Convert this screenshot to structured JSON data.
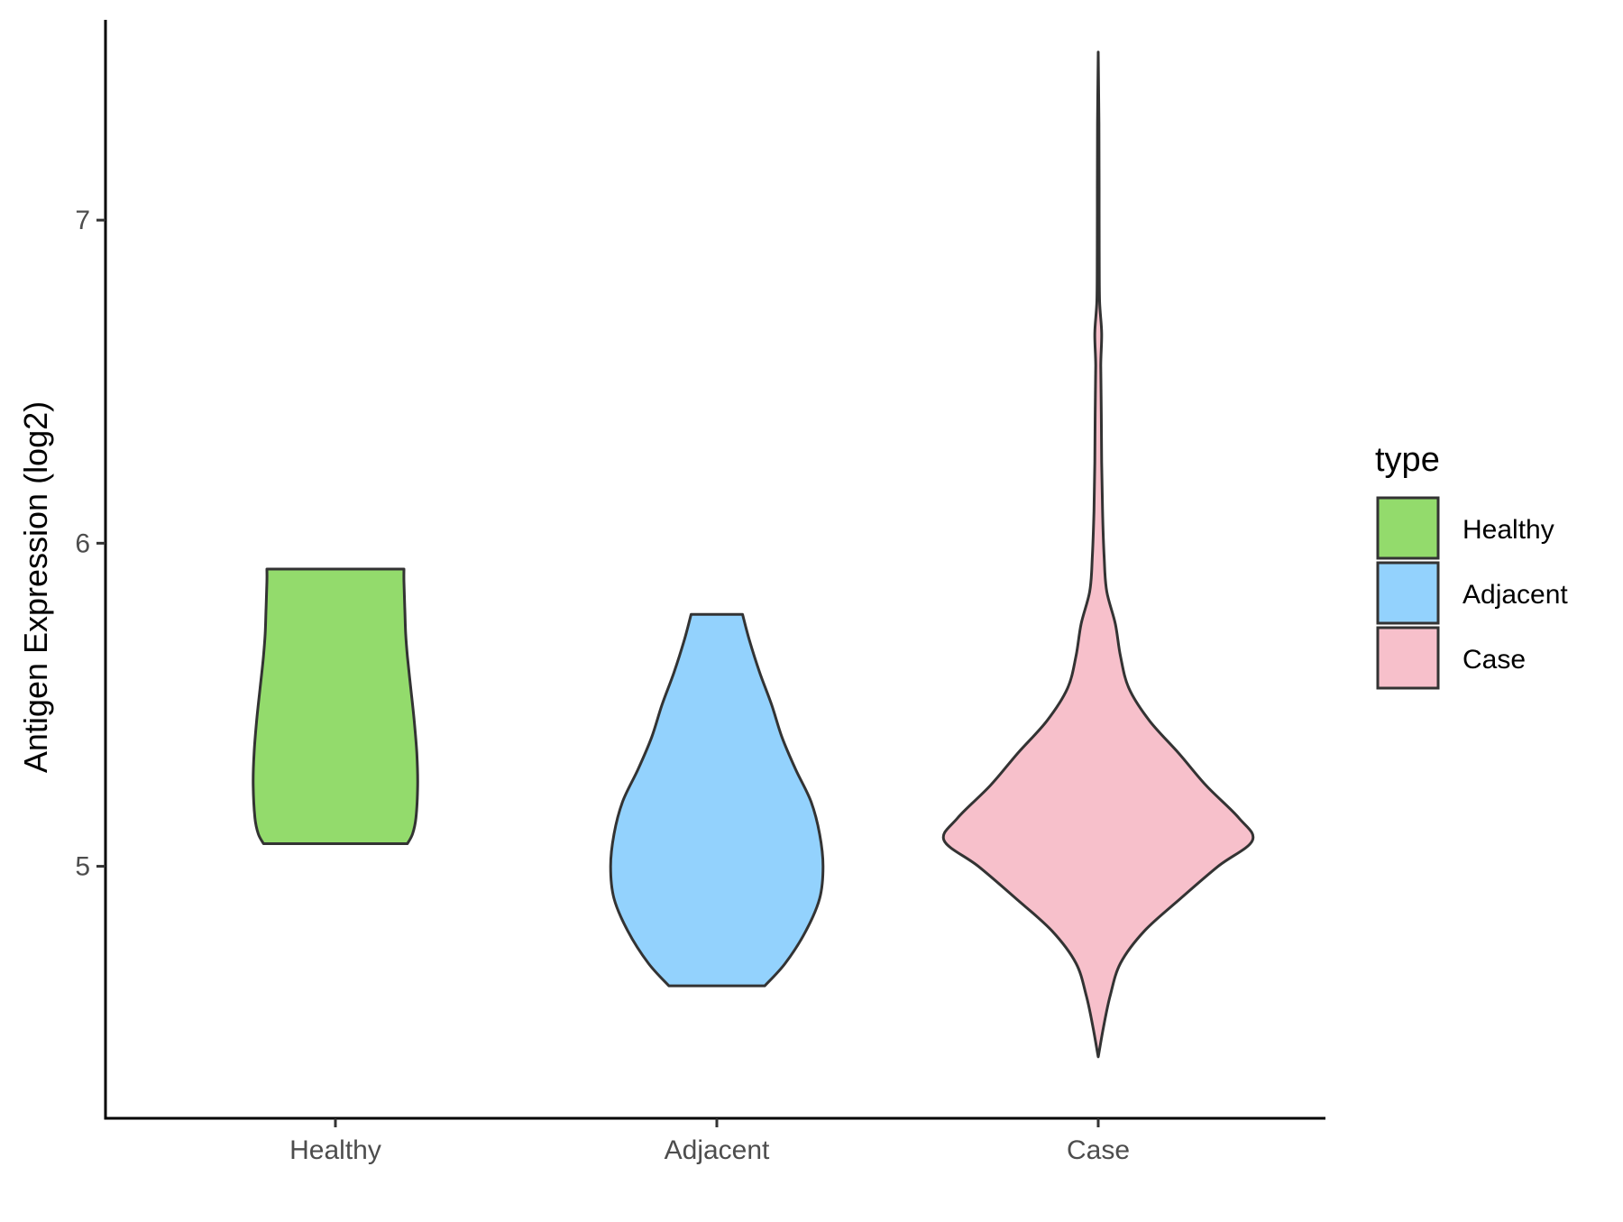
{
  "chart_data": {
    "type": "violin",
    "title": "",
    "xlabel": "",
    "ylabel": "Antigen Expression (log2)",
    "categories": [
      "Healthy",
      "Adjacent",
      "Case"
    ],
    "yticks": [
      5,
      6,
      7
    ],
    "ylim": [
      4.22,
      7.62
    ],
    "grid": false,
    "legend": {
      "title": "type",
      "position": "right",
      "entries": [
        {
          "label": "Healthy",
          "color": "#93DB6C"
        },
        {
          "label": "Adjacent",
          "color": "#93D2FD"
        },
        {
          "label": "Case",
          "color": "#F7C0CB"
        }
      ]
    },
    "outline_color": "#333333",
    "series": [
      {
        "category": "Healthy",
        "color": "#93DB6C",
        "min": 5.07,
        "max": 5.92,
        "profile": [
          [
            5.07,
            0.42
          ],
          [
            5.1,
            0.45
          ],
          [
            5.15,
            0.47
          ],
          [
            5.25,
            0.48
          ],
          [
            5.35,
            0.475
          ],
          [
            5.45,
            0.46
          ],
          [
            5.55,
            0.44
          ],
          [
            5.65,
            0.42
          ],
          [
            5.72,
            0.41
          ],
          [
            5.8,
            0.405
          ],
          [
            5.88,
            0.4
          ],
          [
            5.92,
            0.4
          ]
        ]
      },
      {
        "category": "Adjacent",
        "color": "#93D2FD",
        "min": 4.63,
        "max": 5.78,
        "profile": [
          [
            4.63,
            0.28
          ],
          [
            4.7,
            0.4
          ],
          [
            4.8,
            0.52
          ],
          [
            4.9,
            0.6
          ],
          [
            5.0,
            0.62
          ],
          [
            5.1,
            0.6
          ],
          [
            5.2,
            0.55
          ],
          [
            5.3,
            0.46
          ],
          [
            5.4,
            0.38
          ],
          [
            5.5,
            0.32
          ],
          [
            5.6,
            0.25
          ],
          [
            5.7,
            0.19
          ],
          [
            5.78,
            0.15
          ]
        ]
      },
      {
        "category": "Case",
        "color": "#F7C0CB",
        "min": 4.41,
        "max": 7.52,
        "profile": [
          [
            4.41,
            0.0
          ],
          [
            4.5,
            0.03
          ],
          [
            4.6,
            0.07
          ],
          [
            4.7,
            0.13
          ],
          [
            4.8,
            0.27
          ],
          [
            4.9,
            0.48
          ],
          [
            5.0,
            0.7
          ],
          [
            5.08,
            0.9
          ],
          [
            5.15,
            0.82
          ],
          [
            5.25,
            0.63
          ],
          [
            5.35,
            0.47
          ],
          [
            5.45,
            0.3
          ],
          [
            5.55,
            0.18
          ],
          [
            5.65,
            0.13
          ],
          [
            5.75,
            0.1
          ],
          [
            5.85,
            0.05
          ],
          [
            5.95,
            0.035
          ],
          [
            6.1,
            0.025
          ],
          [
            6.25,
            0.02
          ],
          [
            6.4,
            0.018
          ],
          [
            6.55,
            0.015
          ],
          [
            6.65,
            0.02
          ],
          [
            6.75,
            0.008
          ],
          [
            6.9,
            0.006
          ],
          [
            7.1,
            0.005
          ],
          [
            7.3,
            0.004
          ],
          [
            7.52,
            0.0
          ]
        ]
      }
    ]
  }
}
